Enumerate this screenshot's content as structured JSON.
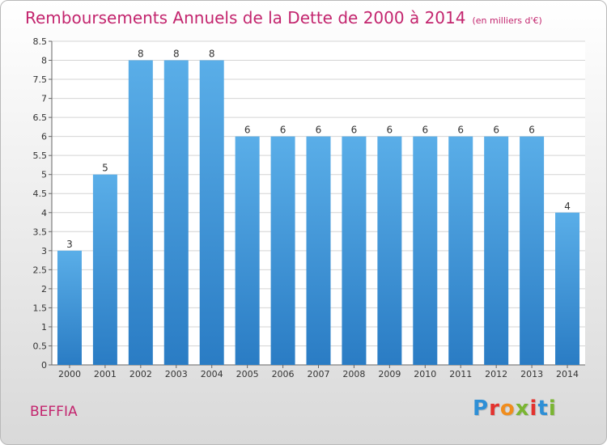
{
  "header": {
    "title": "Remboursements Annuels de la Dette de 2000 à 2014",
    "unit": "(en milliers d'€)"
  },
  "footer": {
    "commune": "BEFFIA",
    "logo_letters": [
      "P",
      "r",
      "o",
      "x",
      "i",
      "t",
      "i"
    ]
  },
  "colors": {
    "title": "#c3256e",
    "bar_top": "#5aaee8",
    "bar_bottom": "#2a7cc4",
    "grid": "#d4d4d4"
  },
  "chart_data": {
    "type": "bar",
    "title": "Remboursements Annuels de la Dette de 2000 à 2014",
    "xlabel": "",
    "ylabel": "",
    "categories": [
      "2000",
      "2001",
      "2002",
      "2003",
      "2004",
      "2005",
      "2006",
      "2007",
      "2008",
      "2009",
      "2010",
      "2011",
      "2012",
      "2013",
      "2014"
    ],
    "values": [
      3,
      5,
      8,
      8,
      8,
      6,
      6,
      6,
      6,
      6,
      6,
      6,
      6,
      6,
      4
    ],
    "ylim": [
      0,
      8.5
    ],
    "yticks": [
      "0",
      "0.5",
      "1",
      "1.5",
      "2",
      "2.5",
      "3",
      "3.5",
      "4",
      "4.5",
      "5",
      "5.5",
      "6",
      "6.5",
      "7",
      "7.5",
      "8",
      "8.5"
    ],
    "grid": true,
    "data_labels": true
  }
}
